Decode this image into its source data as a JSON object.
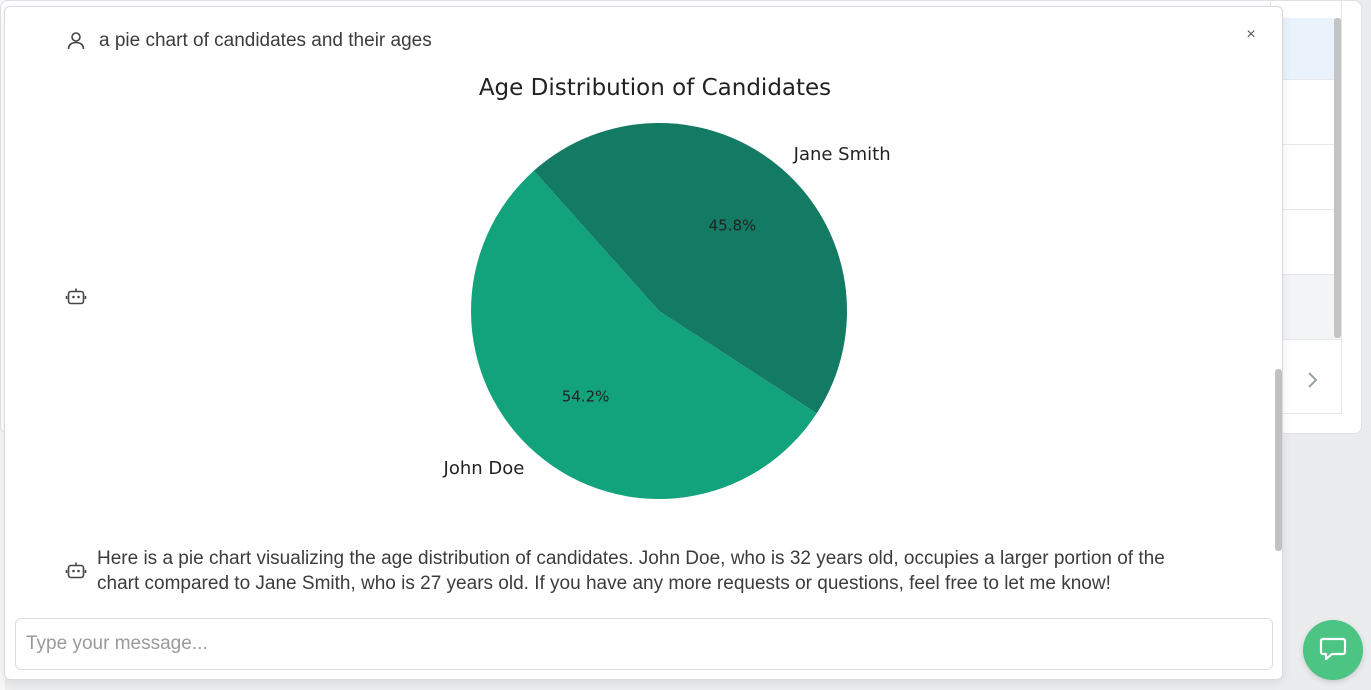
{
  "chat": {
    "user_message": "a pie chart of candidates and their ages",
    "bot_message": "Here is a pie chart visualizing the age distribution of candidates. John Doe, who is 32 years old, occupies a larger portion of the chart compared to Jane Smith, who is 27 years old. If you have any more requests or questions, feel free to let me know!",
    "input_placeholder": "Type your message...",
    "close_label": "×"
  },
  "colors": {
    "john": "#12a27c",
    "jane": "#137a63",
    "fab": "#4cc483"
  },
  "chart_data": {
    "type": "pie",
    "title": "Age Distribution of Candidates",
    "categories": [
      "Jane Smith",
      "John Doe"
    ],
    "values": [
      27,
      32
    ],
    "pct_labels": [
      "45.8%",
      "54.2%"
    ]
  }
}
